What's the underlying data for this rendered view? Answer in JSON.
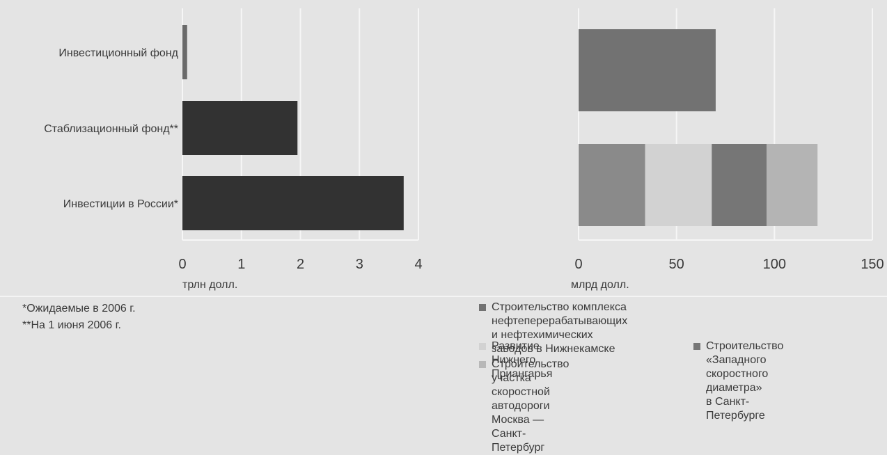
{
  "chart_data": [
    {
      "type": "bar",
      "orientation": "horizontal",
      "categories": [
        "Инвестиционный фонд",
        "Стаблизационный фонд**",
        "Инвестиции в России*"
      ],
      "values": [
        0.08,
        1.95,
        3.75
      ],
      "xlabel": "трлн долл.",
      "xlim": [
        0,
        4
      ],
      "xticks": [
        "0",
        "1",
        "2",
        "3",
        "4"
      ],
      "grid": "vertical",
      "color": "#323232"
    },
    {
      "type": "bar",
      "orientation": "horizontal",
      "stacked": true,
      "rows": [
        {
          "segments": [
            {
              "series": 0,
              "value": 70
            }
          ]
        },
        {
          "segments": [
            {
              "series": 1,
              "value": 34
            },
            {
              "series": 2,
              "value": 34
            },
            {
              "series": 3,
              "value": 28
            },
            {
              "series": 4,
              "value": 26
            }
          ]
        }
      ],
      "xlabel": "млрд долл.",
      "xlim": [
        0,
        150
      ],
      "xticks": [
        "0",
        "50",
        "100",
        "150"
      ],
      "grid": "vertical",
      "series": [
        {
          "name": "Строительство комплекса нефтеперерабатывающих\nи нефтехимических заводов в Нижнекамске",
          "color": "#727272"
        },
        {
          "name": "Строительство участка\nскоростной автодороги\nМосква — Санкт-Петербург",
          "color": "#8a8a8a"
        },
        {
          "name": "Развитие Нижнего Приангарья",
          "color": "#d2d2d2"
        },
        {
          "name": "Строительство «Западного\nскоростного диаметра»\nв Санкт-Петербурге",
          "color": "#767676"
        },
        {
          "name": "",
          "color": "#b4b4b4"
        }
      ]
    }
  ],
  "notes": [
    "*Ожидаемые в 2006 г.",
    "**На 1 июня 2006 г."
  ],
  "legend": [
    {
      "series": 0,
      "swatch_color": "#727272"
    },
    {
      "series": 2,
      "swatch_color": "#d2d2d2"
    },
    {
      "series": 3,
      "swatch_color": "#767676"
    },
    {
      "series": 1,
      "swatch_color": "#b8b8b8"
    }
  ]
}
